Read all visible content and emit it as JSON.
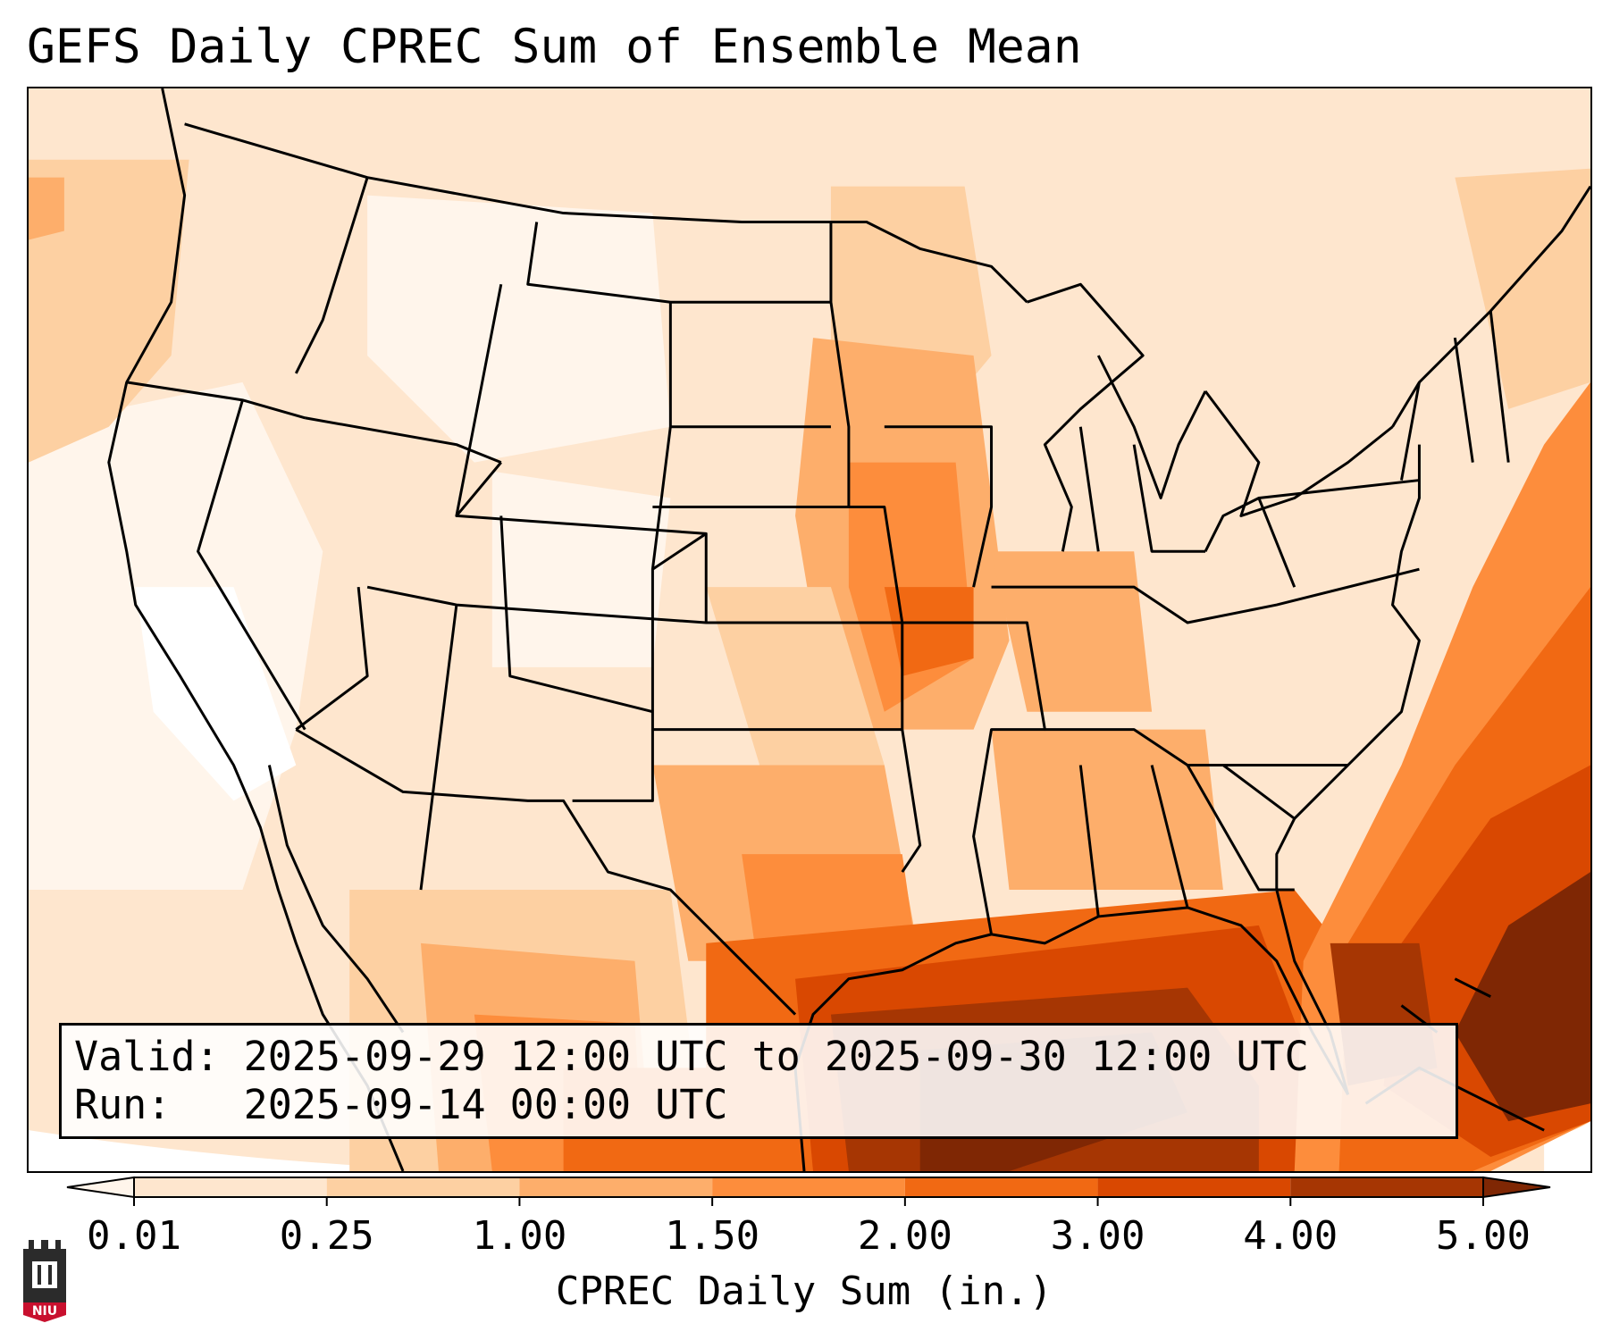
{
  "title": "GEFS Daily CPREC Sum of Ensemble Mean",
  "info": {
    "valid_label": "Valid:",
    "valid_text": "2025-09-29 12:00 UTC to 2025-09-30 12:00 UTC",
    "run_label": "Run:",
    "run_text": "2025-09-14 00:00 UTC"
  },
  "colorbar": {
    "label": "CPREC Daily Sum (in.)",
    "ticks": [
      "0.01",
      "0.25",
      "1.00",
      "1.50",
      "2.00",
      "3.00",
      "4.00",
      "5.00"
    ],
    "colors": [
      "#fff5eb",
      "#fee6ce",
      "#fdd0a2",
      "#fdae6b",
      "#fd8d3c",
      "#f16913",
      "#d94801",
      "#a63603",
      "#7f2704"
    ],
    "extend": "both"
  },
  "map": {
    "region": "Contiguous United States",
    "ocean_color": "#fdd0a2"
  },
  "logo": {
    "text": "NIU",
    "color": "#c8102e"
  }
}
